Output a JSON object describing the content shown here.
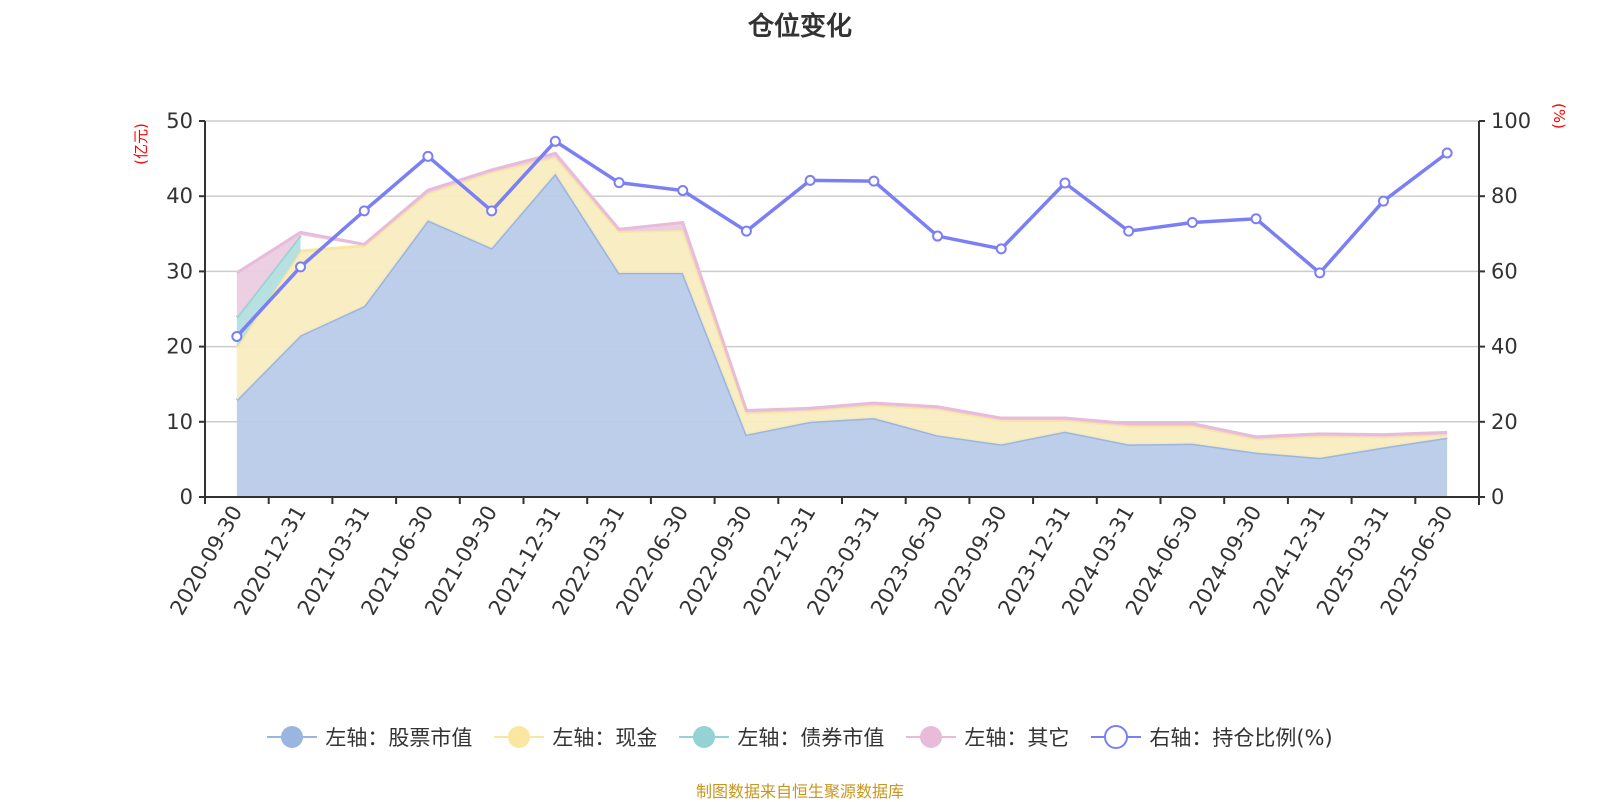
{
  "title": "仓位变化",
  "source": "制图数据来自恒生聚源数据库",
  "chart_data": {
    "type": "area",
    "stacked": true,
    "title": "仓位变化",
    "y_left": {
      "label": "(亿元)",
      "min": 0,
      "max": 50,
      "ticks": [
        0,
        10,
        20,
        30,
        40,
        50
      ]
    },
    "y_right": {
      "label": "(%)",
      "min": 0,
      "max": 100,
      "ticks": [
        0,
        20,
        40,
        60,
        80,
        100
      ]
    },
    "grid": true,
    "legend_position": "bottom",
    "categories": [
      "2020-09-30",
      "2020-12-31",
      "2021-03-31",
      "2021-06-30",
      "2021-09-30",
      "2021-12-31",
      "2022-03-31",
      "2022-06-30",
      "2022-09-30",
      "2022-12-31",
      "2023-03-31",
      "2023-06-30",
      "2023-09-30",
      "2023-12-31",
      "2024-03-31",
      "2024-06-30",
      "2024-09-30",
      "2024-12-31",
      "2025-03-31",
      "2025-06-30"
    ],
    "series": [
      {
        "name": "左轴：股票市值",
        "axis": "left",
        "type": "area",
        "color": "#9ab5e0",
        "fill": "#b8cbe9",
        "values": [
          12.9,
          21.5,
          25.4,
          36.8,
          33.1,
          43.0,
          29.8,
          29.8,
          8.3,
          10.0,
          10.5,
          8.2,
          7.0,
          8.7,
          7.0,
          7.1,
          5.9,
          5.2,
          6.6,
          7.9
        ]
      },
      {
        "name": "左轴：现金",
        "axis": "left",
        "type": "area",
        "color": "#f9e6a0",
        "fill": "#f8ecc0",
        "values": [
          7.0,
          11.2,
          8.0,
          3.6,
          10.1,
          2.2,
          5.5,
          5.7,
          2.9,
          1.5,
          1.7,
          3.5,
          3.2,
          1.5,
          2.45,
          2.35,
          1.8,
          2.9,
          1.4,
          0.4
        ]
      },
      {
        "name": "左轴：债券市值",
        "axis": "left",
        "type": "area",
        "color": "#93d3d3",
        "fill": "#b3dfdf",
        "values": [
          4.0,
          2.1,
          null,
          null,
          null,
          null,
          null,
          null,
          null,
          null,
          null,
          null,
          null,
          null,
          null,
          null,
          null,
          null,
          null,
          null
        ]
      },
      {
        "name": "左轴：其它",
        "axis": "left",
        "type": "area",
        "color": "#e8bbd9",
        "fill": "#ebcce2",
        "values": [
          5.9,
          0.4,
          0.2,
          0.4,
          0.3,
          0.5,
          0.3,
          1.0,
          0.3,
          0.3,
          0.3,
          0.3,
          0.3,
          0.3,
          0.3,
          0.3,
          0.3,
          0.3,
          0.3,
          0.3
        ]
      },
      {
        "name": "右轴：持仓比例(%)",
        "axis": "right",
        "type": "line",
        "color": "#7b7ff5",
        "values": [
          42.7,
          61.2,
          76.1,
          90.6,
          76.1,
          94.6,
          83.6,
          81.5,
          70.7,
          84.2,
          84.0,
          69.4,
          66.0,
          83.5,
          70.7,
          73.0,
          74.0,
          59.6,
          78.7,
          91.5
        ]
      }
    ]
  }
}
